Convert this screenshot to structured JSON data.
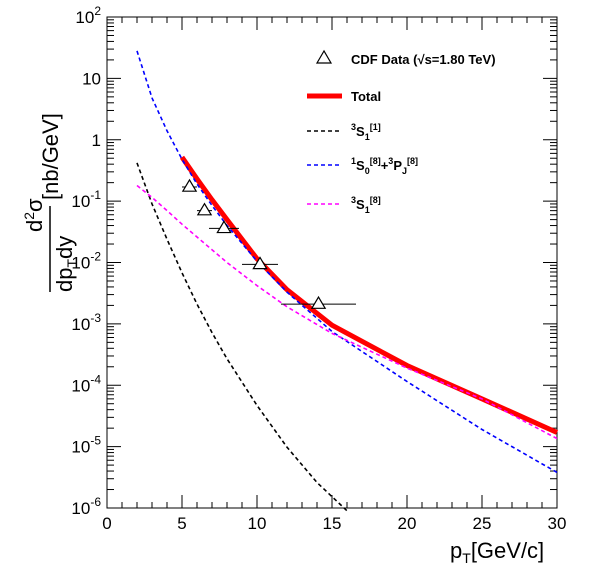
{
  "chart_data": {
    "type": "line",
    "title": "",
    "xlabel": "p_T[GeV/c]",
    "ylabel": "d²σ/dp_T dy [nb/GeV]",
    "xlim": [
      0,
      30
    ],
    "ylim": [
      1e-06,
      100
    ],
    "yscale": "log",
    "grid": false,
    "legend_position": "top-right",
    "x_ticks": [
      "0",
      "5",
      "10",
      "15",
      "20",
      "25",
      "30"
    ],
    "y_ticks": [
      {
        "base": "10",
        "exp": "-6"
      },
      {
        "base": "10",
        "exp": "-5"
      },
      {
        "base": "10",
        "exp": "-4"
      },
      {
        "base": "10",
        "exp": "-3"
      },
      {
        "base": "10",
        "exp": "-2"
      },
      {
        "base": "10",
        "exp": "-1"
      },
      {
        "base": "1",
        "exp": ""
      },
      {
        "base": "10",
        "exp": ""
      },
      {
        "base": "10",
        "exp": "2"
      }
    ],
    "series": [
      {
        "name": "Total",
        "color": "#ff0000",
        "style": "solid-thick",
        "x": [
          5,
          6,
          7,
          8,
          10,
          12,
          15,
          20,
          25,
          30
        ],
        "y": [
          0.52,
          0.23,
          0.105,
          0.05,
          0.0115,
          0.0036,
          0.00095,
          0.00021,
          6e-05,
          1.7e-05
        ]
      },
      {
        "name": "³S₁[1]",
        "color": "#000000",
        "style": "dashed",
        "x": [
          2,
          3,
          4,
          5,
          6,
          7,
          8,
          10,
          12,
          14,
          16
        ],
        "y": [
          0.42,
          0.09,
          0.024,
          0.0068,
          0.0021,
          0.00072,
          0.00027,
          4.7e-05,
          9.8e-06,
          2.6e-06,
          9e-07
        ]
      },
      {
        "name": "¹S₀[8]+³P_J[8]",
        "color": "#0000ff",
        "style": "dashed",
        "x": [
          2,
          3,
          4,
          5,
          6,
          7,
          8,
          10,
          12,
          15,
          20,
          25,
          30
        ],
        "y": [
          28,
          4.8,
          1.4,
          0.48,
          0.19,
          0.085,
          0.04,
          0.0105,
          0.0033,
          0.00075,
          0.000115,
          1.9e-05,
          3.8e-06
        ]
      },
      {
        "name": "³S₁[8]",
        "color": "#ff00ff",
        "style": "dashed",
        "x": [
          2,
          3,
          4,
          5,
          6,
          8,
          10,
          12,
          15,
          20,
          25,
          30
        ],
        "y": [
          0.18,
          0.115,
          0.07,
          0.042,
          0.026,
          0.01,
          0.0042,
          0.0019,
          0.0007,
          0.00019,
          6e-05,
          1.35e-05
        ]
      }
    ],
    "data_points": {
      "name": "CDF Data (√s=1.80 TeV)",
      "marker": "open-triangle",
      "x": [
        5.5,
        6.5,
        7.8,
        10.2,
        14.1
      ],
      "y": [
        0.17,
        0.07,
        0.036,
        0.0093,
        0.0021
      ],
      "xerr": [
        0.5,
        0.5,
        1.0,
        1.2,
        2.5
      ]
    },
    "legend": [
      {
        "key": "cdf",
        "symbol": "triangle",
        "color": "#000000",
        "parts": [
          {
            "t": "CDF Data (√s=1.80 TeV)",
            "s": "n"
          }
        ]
      },
      {
        "key": "total",
        "symbol": "line-thick",
        "color": "#ff0000",
        "parts": [
          {
            "t": "Total",
            "s": "n"
          }
        ]
      },
      {
        "key": "s1",
        "symbol": "dashed",
        "color": "#000000",
        "parts": [
          {
            "t": "3",
            "s": "sup"
          },
          {
            "t": "S",
            "s": "n"
          },
          {
            "t": "1",
            "s": "sub"
          },
          {
            "t": "[1]",
            "s": "sup"
          }
        ]
      },
      {
        "key": "s0pj",
        "symbol": "dashed",
        "color": "#0000ff",
        "parts": [
          {
            "t": "1",
            "s": "sup"
          },
          {
            "t": "S",
            "s": "n"
          },
          {
            "t": "0",
            "s": "sub"
          },
          {
            "t": "[8]",
            "s": "sup"
          },
          {
            "t": "+",
            "s": "n"
          },
          {
            "t": "3",
            "s": "sup"
          },
          {
            "t": "P",
            "s": "n"
          },
          {
            "t": "J",
            "s": "sub"
          },
          {
            "t": "[8]",
            "s": "sup"
          }
        ]
      },
      {
        "key": "s8",
        "symbol": "dashed",
        "color": "#ff00ff",
        "parts": [
          {
            "t": "3",
            "s": "sup"
          },
          {
            "t": "S",
            "s": "n"
          },
          {
            "t": "1",
            "s": "sub"
          },
          {
            "t": "[8]",
            "s": "sup"
          }
        ]
      }
    ]
  }
}
